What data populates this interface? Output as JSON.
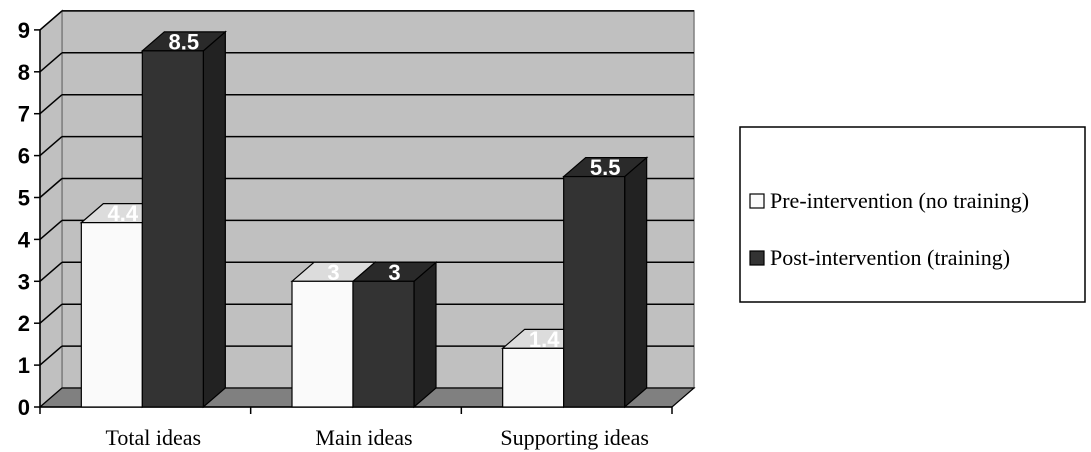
{
  "chart_data": {
    "type": "bar",
    "style": "3d-clustered",
    "categories": [
      "Total ideas",
      "Main ideas",
      "Supporting ideas"
    ],
    "series": [
      {
        "name": "Pre-intervention (no training)",
        "values": [
          4.4,
          3,
          1.4
        ],
        "labels": [
          "4.4",
          "3",
          "1.4"
        ],
        "color": "#fafafa"
      },
      {
        "name": "Post-intervention (training)",
        "values": [
          8.5,
          3,
          5.5
        ],
        "labels": [
          "8.5",
          "3",
          "5.5"
        ],
        "color": "#333333"
      }
    ],
    "ylim": [
      0,
      9
    ],
    "yticks": [
      "0",
      "1",
      "2",
      "3",
      "4",
      "5",
      "6",
      "7",
      "8",
      "9"
    ],
    "grid": true,
    "legend_position": "right",
    "wall_color": "#c0c0c0",
    "floor_color": "#808080"
  }
}
